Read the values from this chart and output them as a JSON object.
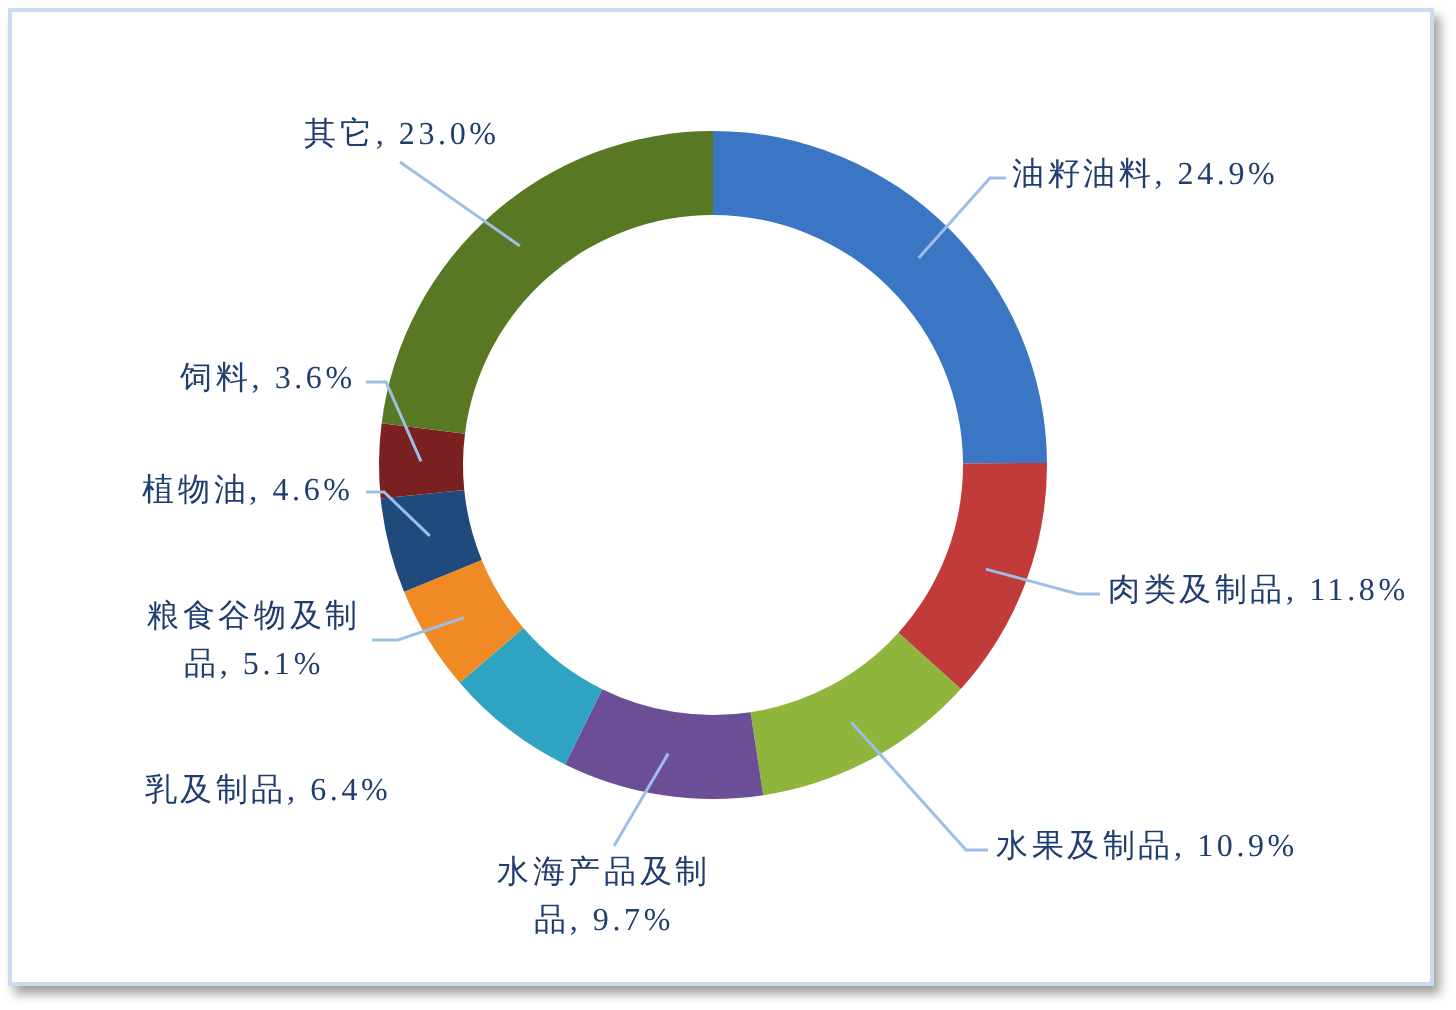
{
  "chart_data": {
    "type": "donut",
    "categories": [
      "油籽油料",
      "肉类及制品",
      "水果及制品",
      "水海产品及制品",
      "乳及制品",
      "粮食谷物及制品",
      "植物油",
      "饲料",
      "其它"
    ],
    "values": [
      24.9,
      11.8,
      10.9,
      9.7,
      6.4,
      5.1,
      4.6,
      3.6,
      23.0
    ],
    "value_labels": [
      "24.9%",
      "11.8%",
      "10.9%",
      "9.7%",
      "6.4%",
      "5.1%",
      "4.6%",
      "3.6%",
      "23.0%"
    ],
    "colors": [
      "#3a76c4",
      "#c23b3b",
      "#8fb53c",
      "#6c4e96",
      "#2fa3c2",
      "#ef8a25",
      "#1f4a7c",
      "#7b2020",
      "#587824"
    ]
  }
}
